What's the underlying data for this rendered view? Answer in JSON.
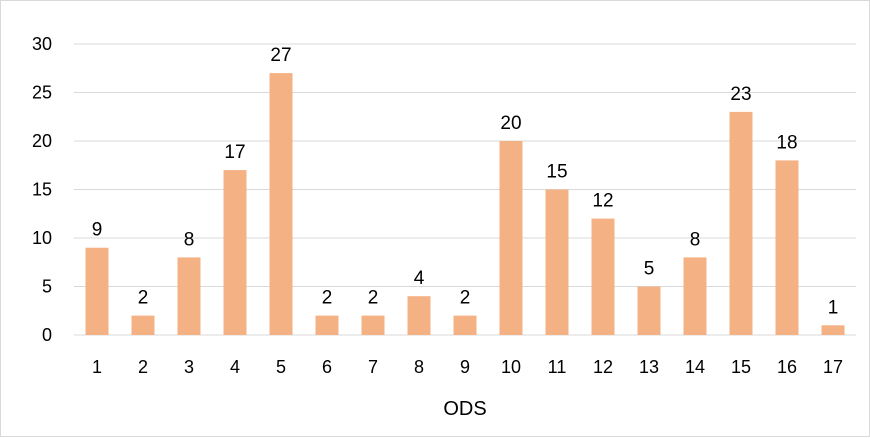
{
  "chart_data": {
    "type": "bar",
    "categories": [
      "1",
      "2",
      "3",
      "4",
      "5",
      "6",
      "7",
      "8",
      "9",
      "10",
      "11",
      "12",
      "13",
      "14",
      "15",
      "16",
      "17"
    ],
    "values": [
      9,
      2,
      8,
      17,
      27,
      2,
      2,
      4,
      2,
      20,
      15,
      12,
      5,
      8,
      23,
      18,
      1
    ],
    "title": "",
    "xlabel": "ODS",
    "ylabel": "",
    "ylim": [
      0,
      30
    ],
    "yticks": [
      "0",
      "5",
      "10",
      "15",
      "20",
      "25",
      "30"
    ],
    "grid": true,
    "legend": "none",
    "bar_color": "#F4B183",
    "grid_color": "#d9d9d9"
  }
}
